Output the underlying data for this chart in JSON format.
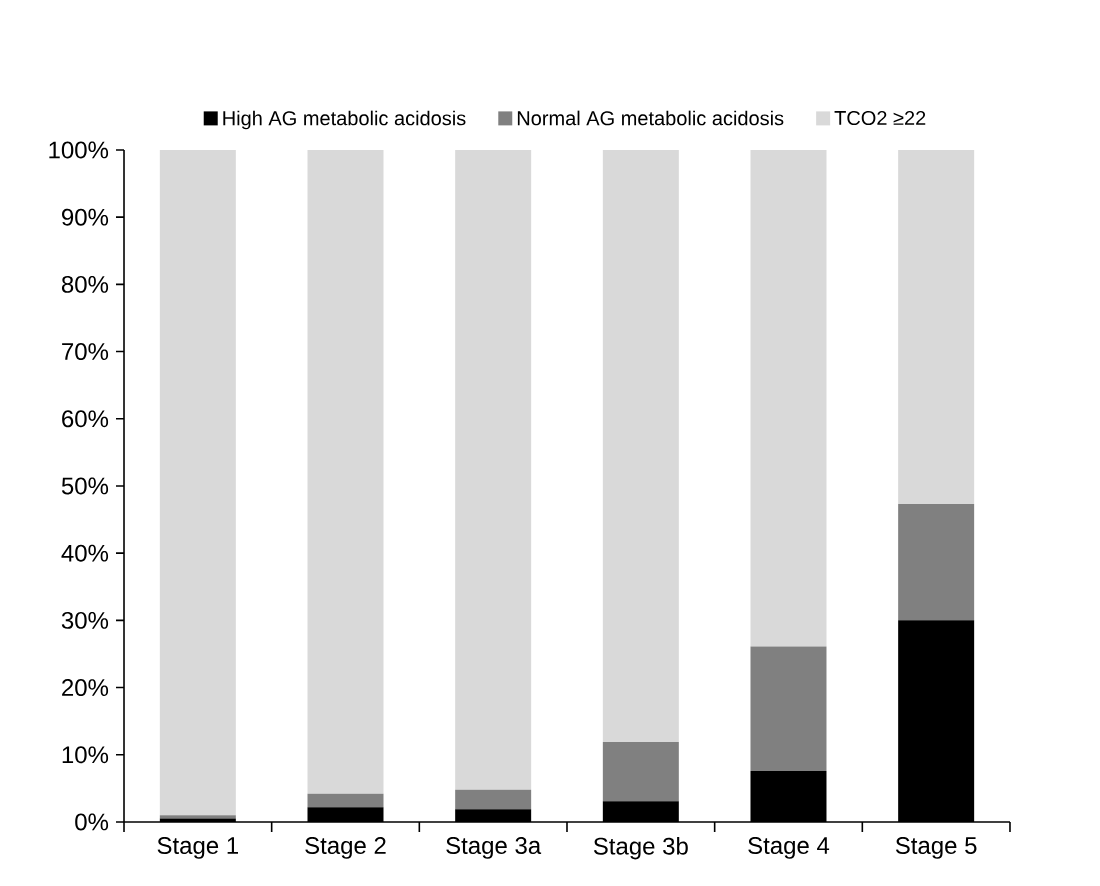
{
  "chart_data": {
    "type": "bar",
    "stacked": true,
    "legend": "top",
    "grid": false,
    "categories": [
      "Stage 1",
      "Stage 2",
      "Stage 3a",
      "Stage 3b",
      "Stage 4",
      "Stage 5"
    ],
    "ylim": [
      0,
      100
    ],
    "yticks": [
      {
        "value": 0,
        "label": "0%"
      },
      {
        "value": 10,
        "label": "10%"
      },
      {
        "value": 20,
        "label": "20%"
      },
      {
        "value": 30,
        "label": "30%"
      },
      {
        "value": 40,
        "label": "40%"
      },
      {
        "value": 50,
        "label": "50%"
      },
      {
        "value": 60,
        "label": "60%"
      },
      {
        "value": 70,
        "label": "70%"
      },
      {
        "value": 80,
        "label": "80%"
      },
      {
        "value": 90,
        "label": "90%"
      },
      {
        "value": 100,
        "label": "100%"
      }
    ],
    "series": [
      {
        "name": "High AG metabolic acidosis",
        "color": "#000000",
        "values": [
          0.5,
          2.2,
          1.9,
          3.1,
          7.6,
          30.0
        ]
      },
      {
        "name": "Normal AG metabolic acidosis",
        "color": "#808080",
        "values": [
          0.5,
          2.0,
          2.9,
          8.8,
          18.5,
          17.3
        ]
      },
      {
        "name": "TCO2 ≥22",
        "color": "#d9d9d9",
        "values": [
          99.0,
          95.8,
          95.2,
          88.1,
          73.9,
          52.7
        ]
      }
    ]
  }
}
